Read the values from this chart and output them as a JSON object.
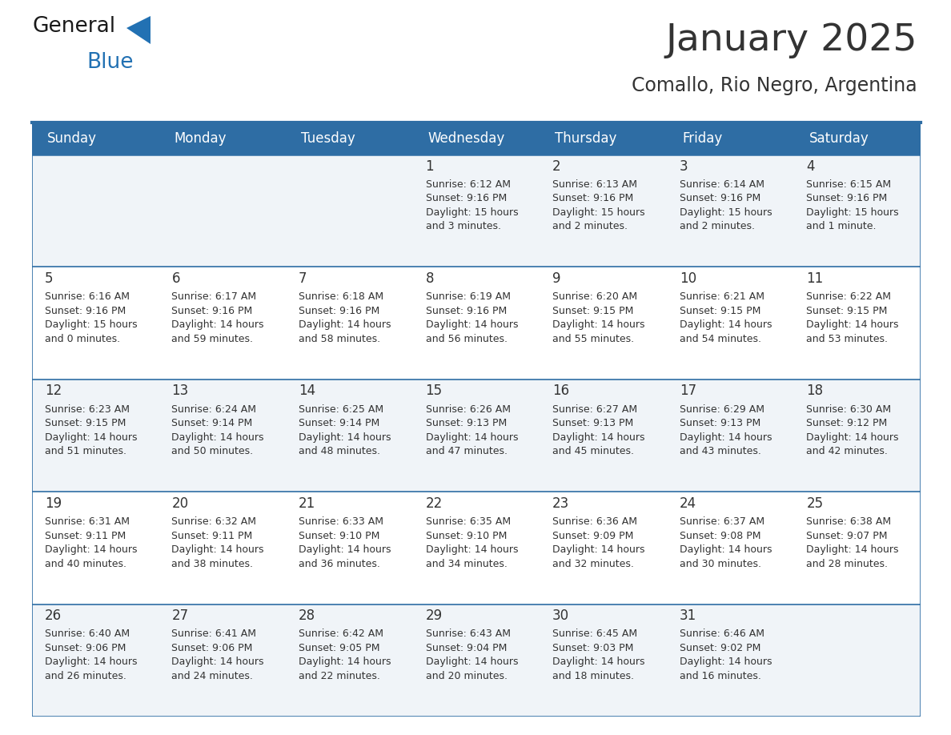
{
  "title": "January 2025",
  "subtitle": "Comallo, Rio Negro, Argentina",
  "header_bg": "#2E6DA4",
  "header_text": "#FFFFFF",
  "cell_bg_odd": "#F0F4F8",
  "cell_bg_even": "#FFFFFF",
  "text_color": "#333333",
  "line_color": "#2E6DA4",
  "days_of_week": [
    "Sunday",
    "Monday",
    "Tuesday",
    "Wednesday",
    "Thursday",
    "Friday",
    "Saturday"
  ],
  "calendar_data": [
    [
      {
        "day": "",
        "info": ""
      },
      {
        "day": "",
        "info": ""
      },
      {
        "day": "",
        "info": ""
      },
      {
        "day": "1",
        "info": "Sunrise: 6:12 AM\nSunset: 9:16 PM\nDaylight: 15 hours\nand 3 minutes."
      },
      {
        "day": "2",
        "info": "Sunrise: 6:13 AM\nSunset: 9:16 PM\nDaylight: 15 hours\nand 2 minutes."
      },
      {
        "day": "3",
        "info": "Sunrise: 6:14 AM\nSunset: 9:16 PM\nDaylight: 15 hours\nand 2 minutes."
      },
      {
        "day": "4",
        "info": "Sunrise: 6:15 AM\nSunset: 9:16 PM\nDaylight: 15 hours\nand 1 minute."
      }
    ],
    [
      {
        "day": "5",
        "info": "Sunrise: 6:16 AM\nSunset: 9:16 PM\nDaylight: 15 hours\nand 0 minutes."
      },
      {
        "day": "6",
        "info": "Sunrise: 6:17 AM\nSunset: 9:16 PM\nDaylight: 14 hours\nand 59 minutes."
      },
      {
        "day": "7",
        "info": "Sunrise: 6:18 AM\nSunset: 9:16 PM\nDaylight: 14 hours\nand 58 minutes."
      },
      {
        "day": "8",
        "info": "Sunrise: 6:19 AM\nSunset: 9:16 PM\nDaylight: 14 hours\nand 56 minutes."
      },
      {
        "day": "9",
        "info": "Sunrise: 6:20 AM\nSunset: 9:15 PM\nDaylight: 14 hours\nand 55 minutes."
      },
      {
        "day": "10",
        "info": "Sunrise: 6:21 AM\nSunset: 9:15 PM\nDaylight: 14 hours\nand 54 minutes."
      },
      {
        "day": "11",
        "info": "Sunrise: 6:22 AM\nSunset: 9:15 PM\nDaylight: 14 hours\nand 53 minutes."
      }
    ],
    [
      {
        "day": "12",
        "info": "Sunrise: 6:23 AM\nSunset: 9:15 PM\nDaylight: 14 hours\nand 51 minutes."
      },
      {
        "day": "13",
        "info": "Sunrise: 6:24 AM\nSunset: 9:14 PM\nDaylight: 14 hours\nand 50 minutes."
      },
      {
        "day": "14",
        "info": "Sunrise: 6:25 AM\nSunset: 9:14 PM\nDaylight: 14 hours\nand 48 minutes."
      },
      {
        "day": "15",
        "info": "Sunrise: 6:26 AM\nSunset: 9:13 PM\nDaylight: 14 hours\nand 47 minutes."
      },
      {
        "day": "16",
        "info": "Sunrise: 6:27 AM\nSunset: 9:13 PM\nDaylight: 14 hours\nand 45 minutes."
      },
      {
        "day": "17",
        "info": "Sunrise: 6:29 AM\nSunset: 9:13 PM\nDaylight: 14 hours\nand 43 minutes."
      },
      {
        "day": "18",
        "info": "Sunrise: 6:30 AM\nSunset: 9:12 PM\nDaylight: 14 hours\nand 42 minutes."
      }
    ],
    [
      {
        "day": "19",
        "info": "Sunrise: 6:31 AM\nSunset: 9:11 PM\nDaylight: 14 hours\nand 40 minutes."
      },
      {
        "day": "20",
        "info": "Sunrise: 6:32 AM\nSunset: 9:11 PM\nDaylight: 14 hours\nand 38 minutes."
      },
      {
        "day": "21",
        "info": "Sunrise: 6:33 AM\nSunset: 9:10 PM\nDaylight: 14 hours\nand 36 minutes."
      },
      {
        "day": "22",
        "info": "Sunrise: 6:35 AM\nSunset: 9:10 PM\nDaylight: 14 hours\nand 34 minutes."
      },
      {
        "day": "23",
        "info": "Sunrise: 6:36 AM\nSunset: 9:09 PM\nDaylight: 14 hours\nand 32 minutes."
      },
      {
        "day": "24",
        "info": "Sunrise: 6:37 AM\nSunset: 9:08 PM\nDaylight: 14 hours\nand 30 minutes."
      },
      {
        "day": "25",
        "info": "Sunrise: 6:38 AM\nSunset: 9:07 PM\nDaylight: 14 hours\nand 28 minutes."
      }
    ],
    [
      {
        "day": "26",
        "info": "Sunrise: 6:40 AM\nSunset: 9:06 PM\nDaylight: 14 hours\nand 26 minutes."
      },
      {
        "day": "27",
        "info": "Sunrise: 6:41 AM\nSunset: 9:06 PM\nDaylight: 14 hours\nand 24 minutes."
      },
      {
        "day": "28",
        "info": "Sunrise: 6:42 AM\nSunset: 9:05 PM\nDaylight: 14 hours\nand 22 minutes."
      },
      {
        "day": "29",
        "info": "Sunrise: 6:43 AM\nSunset: 9:04 PM\nDaylight: 14 hours\nand 20 minutes."
      },
      {
        "day": "30",
        "info": "Sunrise: 6:45 AM\nSunset: 9:03 PM\nDaylight: 14 hours\nand 18 minutes."
      },
      {
        "day": "31",
        "info": "Sunrise: 6:46 AM\nSunset: 9:02 PM\nDaylight: 14 hours\nand 16 minutes."
      },
      {
        "day": "",
        "info": ""
      }
    ]
  ],
  "logo_color_general": "#1a1a1a",
  "logo_color_blue": "#2271B3",
  "title_fontsize": 34,
  "subtitle_fontsize": 17,
  "header_fontsize": 12,
  "day_num_fontsize": 12,
  "info_fontsize": 9
}
